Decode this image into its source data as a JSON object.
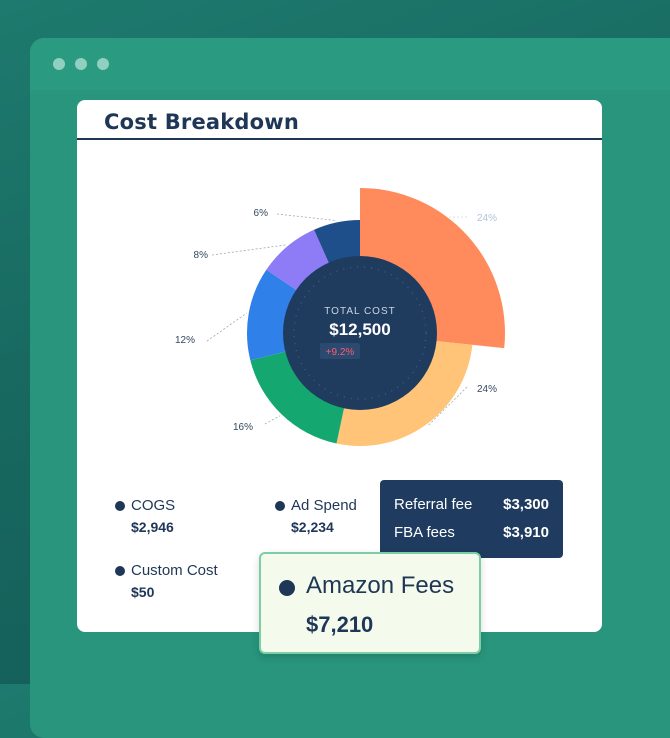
{
  "card": {
    "title": "Cost Breakdown"
  },
  "chart_data": {
    "type": "pie",
    "center_label": "TOTAL COST",
    "center_value": "$12,500",
    "center_change": "+9.2%",
    "slices": [
      {
        "label": "24%",
        "value": 24,
        "color": "#ff8a5c"
      },
      {
        "label": "24%",
        "value": 24,
        "color": "#ffc477"
      },
      {
        "label": "16%",
        "value": 16,
        "color": "#14a870"
      },
      {
        "label": "12%",
        "value": 12,
        "color": "#2f80e8"
      },
      {
        "label": "8%",
        "value": 8,
        "color": "#8d7cf5"
      },
      {
        "label": "6%",
        "value": 6,
        "color": "#1e4f8a"
      }
    ]
  },
  "legend": {
    "cogs": {
      "label": "COGS",
      "value": "$2,946"
    },
    "ad_spend": {
      "label": "Ad Spend",
      "value": "$2,234"
    },
    "custom_cost": {
      "label": "Custom Cost",
      "value": "$50"
    }
  },
  "tooltip": {
    "rows": [
      {
        "label": "Referral fee",
        "value": "$3,300"
      },
      {
        "label": "FBA fees",
        "value": "$3,910"
      }
    ]
  },
  "amazon_fees": {
    "label": "Amazon Fees",
    "value": "$7,210"
  }
}
